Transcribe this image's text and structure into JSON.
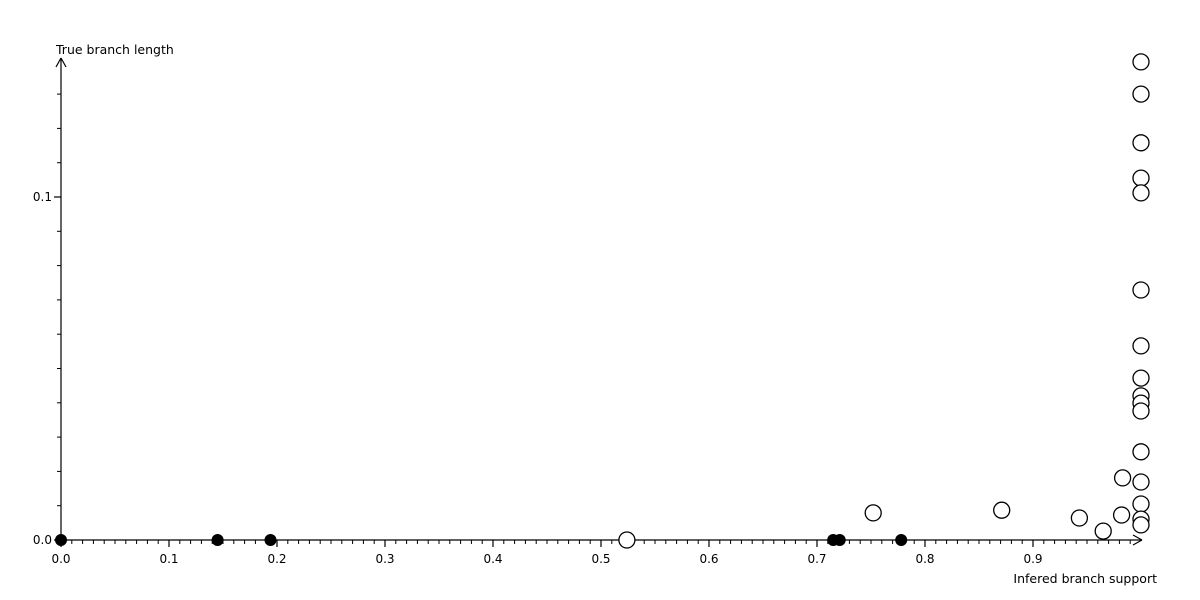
{
  "page": {
    "background": "#ffffff",
    "axis_color": "#000000",
    "marker_color": "#000000"
  },
  "chart_data": {
    "type": "scatter",
    "title": "",
    "xlabel": "Infered branch support",
    "ylabel": "True branch length",
    "xlim": [
      0.0,
      1.0
    ],
    "ylim": [
      0.0,
      0.14
    ],
    "grid": false,
    "legend": "none",
    "x_tick_labels": [
      "0.0",
      "0.1",
      "0.2",
      "0.3",
      "0.4",
      "0.5",
      "0.6",
      "0.7",
      "0.8",
      "0.9"
    ],
    "x_major_tick_values": [
      0.0,
      0.1,
      0.2,
      0.3,
      0.4,
      0.5,
      0.6,
      0.7,
      0.8,
      0.9
    ],
    "x_minor_tick_step": 0.01,
    "y_tick_labels": [
      "0.0",
      "0.1"
    ],
    "y_major_tick_values": [
      0.0,
      0.1
    ],
    "y_minor_tick_step": 0.01,
    "y_minor_tick_max": 0.13,
    "series": [
      {
        "name": "open-circles",
        "marker": "open-circle",
        "color": "#000000",
        "points": [
          [
            1.0,
            0.1394
          ],
          [
            1.0,
            0.13
          ],
          [
            1.0,
            0.1158
          ],
          [
            1.0,
            0.1055
          ],
          [
            1.0,
            0.1012
          ],
          [
            1.0,
            0.0729
          ],
          [
            1.0,
            0.0566
          ],
          [
            1.0,
            0.0472
          ],
          [
            1.0,
            0.042
          ],
          [
            1.0,
            0.0399
          ],
          [
            1.0,
            0.0376
          ],
          [
            1.0,
            0.0257
          ],
          [
            0.983,
            0.0181
          ],
          [
            1.0,
            0.0169
          ],
          [
            1.0,
            0.0105
          ],
          [
            0.871,
            0.0087
          ],
          [
            0.752,
            0.0079
          ],
          [
            0.982,
            0.0073
          ],
          [
            0.943,
            0.0064
          ],
          [
            1.0,
            0.0061
          ],
          [
            1.0,
            0.0044
          ],
          [
            0.965,
            0.0026
          ],
          [
            0.524,
            0.0
          ]
        ]
      },
      {
        "name": "filled-dots",
        "marker": "filled-circle",
        "color": "#000000",
        "points": [
          [
            0.0,
            0.0
          ],
          [
            0.145,
            0.0
          ],
          [
            0.194,
            0.0
          ],
          [
            0.715,
            0.0
          ],
          [
            0.721,
            0.0
          ],
          [
            0.778,
            0.0
          ]
        ]
      }
    ]
  }
}
